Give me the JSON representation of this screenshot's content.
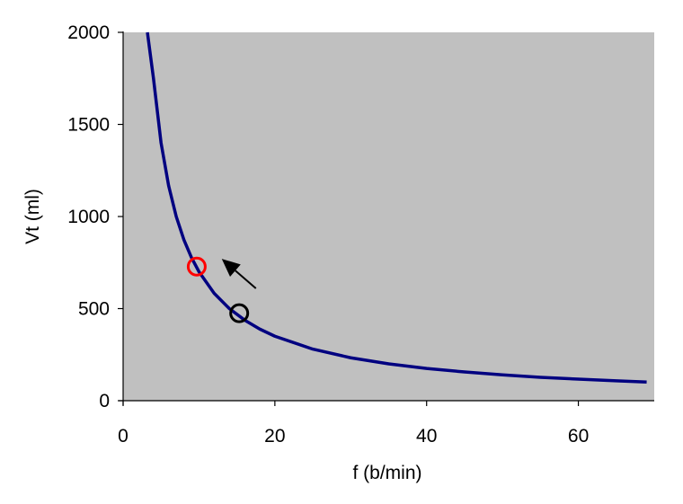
{
  "chart_data": {
    "type": "line",
    "title": "",
    "xlabel": "f (b/min)",
    "ylabel": "Vt (ml)",
    "xlim": [
      0,
      70
    ],
    "ylim": [
      0,
      2000
    ],
    "x_ticks": [
      0,
      20,
      40,
      60
    ],
    "y_ticks": [
      0,
      500,
      1000,
      1500,
      2000
    ],
    "grid": false,
    "legend": "none",
    "colors": {
      "plot_background": "#c0c0c0",
      "curve": "#000080",
      "marker_new": "#ff0000",
      "marker_old": "#000000",
      "arrow": "#000000"
    },
    "series": [
      {
        "x": [
          3.2,
          4,
          5,
          6,
          7,
          8,
          9,
          10,
          12,
          14,
          16,
          18,
          20,
          25,
          30,
          35,
          40,
          45,
          50,
          55,
          60,
          65,
          69
        ],
        "values": [
          2000,
          1750,
          1400,
          1167,
          1000,
          875,
          778,
          700,
          583,
          500,
          438,
          389,
          350,
          280,
          233,
          200,
          175,
          156,
          140,
          127,
          117,
          108,
          101
        ]
      }
    ],
    "markers": [
      {
        "x": 9.7,
        "y": 728,
        "color": "#ff0000",
        "shape": "open-circle"
      },
      {
        "x": 15.3,
        "y": 475,
        "color": "#000000",
        "shape": "open-circle"
      }
    ],
    "arrow": {
      "from": {
        "x": 17.5,
        "y": 610
      },
      "to": {
        "x": 13,
        "y": 770
      },
      "color": "#000000"
    }
  }
}
